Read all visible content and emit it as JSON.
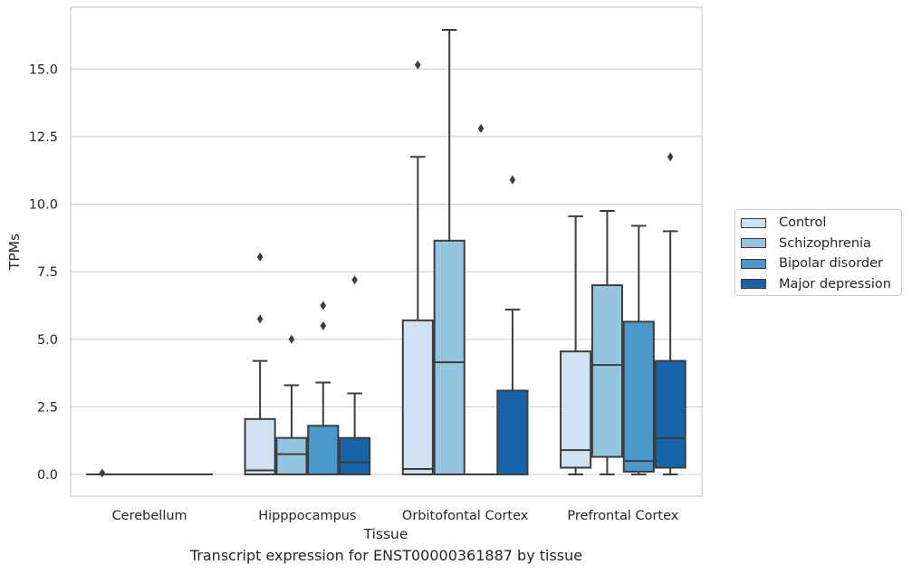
{
  "chart_data": {
    "type": "box",
    "ylabel": "TPMs",
    "xlabel": "Tissue",
    "caption": "Transcript expression for ENST00000361887 by tissue",
    "ylim": [
      -0.8,
      17.5
    ],
    "yticks": [
      0.0,
      2.5,
      5.0,
      7.5,
      10.0,
      12.5,
      15.0
    ],
    "ytick_labels": [
      "0.0",
      "2.5",
      "5.0",
      "7.5",
      "10.0",
      "12.5",
      "15.0"
    ],
    "grid": "horizontal",
    "legend_position": "right",
    "categories": [
      "Cerebellum",
      "Hipppocampus",
      "Orbitofontal Cortex",
      "Prefrontal Cortex"
    ],
    "series": [
      {
        "name": "Control",
        "color": "#d0e1f2",
        "boxes": [
          {
            "min": 0.0,
            "q1": 0.0,
            "median": 0.0,
            "q3": 0.0,
            "max": 0.0,
            "outliers": [
              0.05
            ]
          },
          {
            "min": 0.0,
            "q1": 0.0,
            "median": 0.15,
            "q3": 2.05,
            "max": 4.2,
            "outliers": [
              5.75,
              8.05
            ]
          },
          {
            "min": 0.0,
            "q1": 0.0,
            "median": 0.2,
            "q3": 5.7,
            "max": 11.75,
            "outliers": [
              15.15
            ]
          },
          {
            "min": 0.0,
            "q1": 0.25,
            "median": 0.9,
            "q3": 4.55,
            "max": 9.55,
            "outliers": []
          }
        ]
      },
      {
        "name": "Schizophrenia",
        "color": "#94c4df",
        "boxes": [
          {
            "min": 0.0,
            "q1": 0.0,
            "median": 0.0,
            "q3": 0.0,
            "max": 0.0,
            "outliers": []
          },
          {
            "min": 0.0,
            "q1": 0.0,
            "median": 0.75,
            "q3": 1.35,
            "max": 3.3,
            "outliers": [
              5.0
            ]
          },
          {
            "min": 0.0,
            "q1": 0.0,
            "median": 4.15,
            "q3": 8.65,
            "max": 16.45,
            "outliers": []
          },
          {
            "min": 0.0,
            "q1": 0.65,
            "median": 4.05,
            "q3": 7.0,
            "max": 9.75,
            "outliers": []
          }
        ]
      },
      {
        "name": "Bipolar disorder",
        "color": "#4a98c9",
        "boxes": [
          {
            "min": 0.0,
            "q1": 0.0,
            "median": 0.0,
            "q3": 0.0,
            "max": 0.0,
            "outliers": []
          },
          {
            "min": 0.0,
            "q1": 0.0,
            "median": 0.0,
            "q3": 1.8,
            "max": 3.4,
            "outliers": [
              5.5,
              6.25
            ]
          },
          {
            "min": 0.0,
            "q1": 0.0,
            "median": 0.0,
            "q3": 0.0,
            "max": 0.0,
            "outliers": [
              12.8
            ]
          },
          {
            "min": 0.0,
            "q1": 0.1,
            "median": 0.5,
            "q3": 5.65,
            "max": 9.2,
            "outliers": []
          }
        ]
      },
      {
        "name": "Major depression",
        "color": "#1764ab",
        "boxes": [
          {
            "min": 0.0,
            "q1": 0.0,
            "median": 0.0,
            "q3": 0.0,
            "max": 0.0,
            "outliers": []
          },
          {
            "min": 0.0,
            "q1": 0.0,
            "median": 0.45,
            "q3": 1.35,
            "max": 3.0,
            "outliers": [
              7.2
            ]
          },
          {
            "min": 0.0,
            "q1": 0.0,
            "median": 0.0,
            "q3": 3.1,
            "max": 6.1,
            "outliers": [
              10.9
            ]
          },
          {
            "min": 0.0,
            "q1": 0.25,
            "median": 1.35,
            "q3": 4.2,
            "max": 9.0,
            "outliers": [
              11.75
            ]
          }
        ]
      }
    ]
  }
}
